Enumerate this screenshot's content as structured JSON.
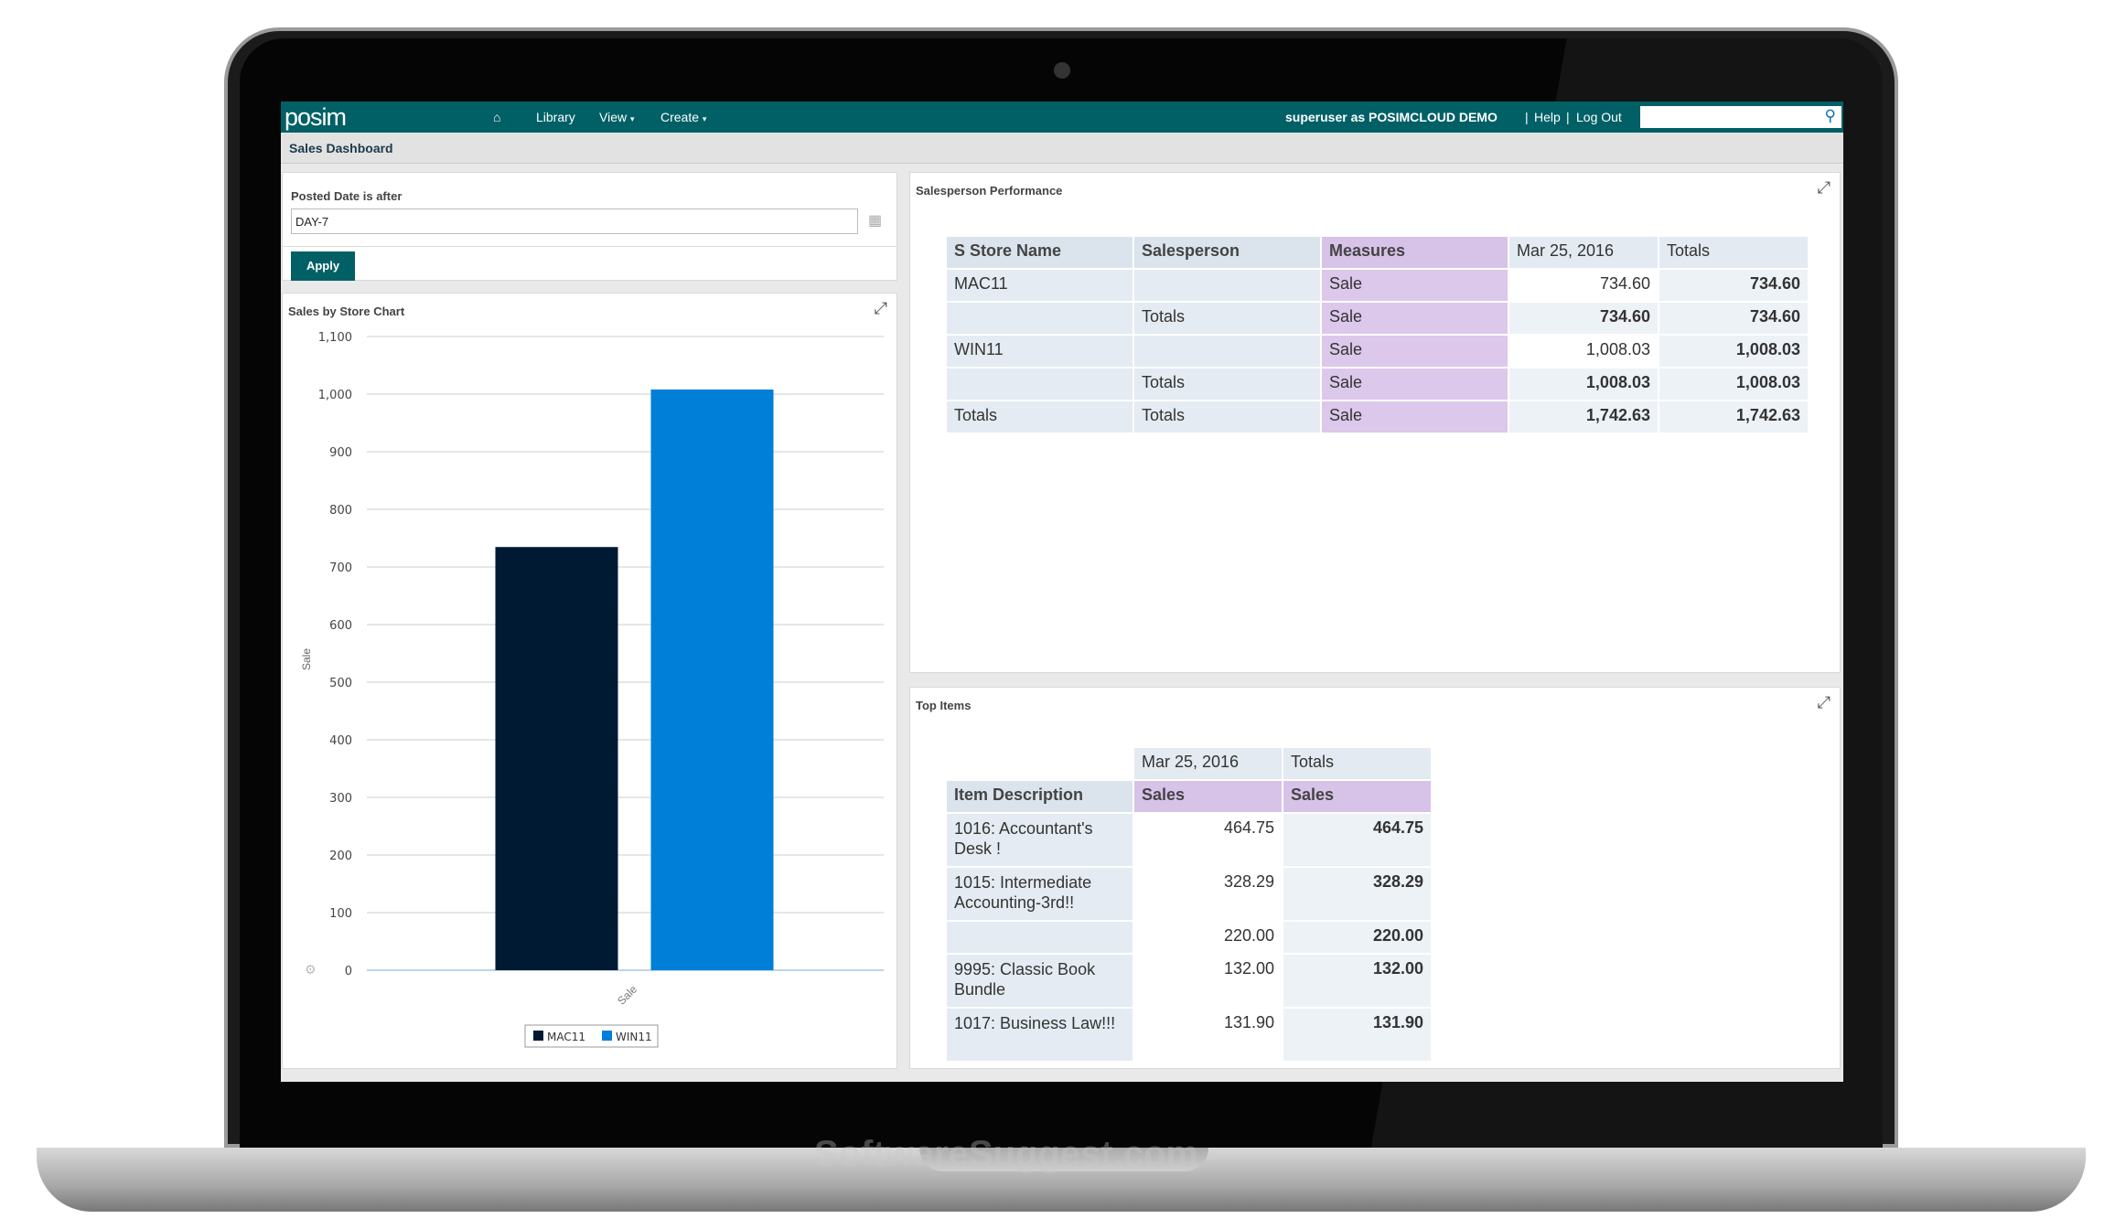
{
  "nav": {
    "logo": "posim",
    "home_icon": "home-icon",
    "library": "Library",
    "view": "View",
    "create": "Create",
    "user": "superuser as POSIMCLOUD DEMO",
    "sep": "|",
    "help": "Help",
    "logout": "Log Out",
    "search_placeholder": "",
    "search_icon": "search-icon",
    "color": "#006066"
  },
  "breadcrumb": "Sales Dashboard",
  "filter": {
    "label": "Posted Date is after",
    "value": "DAY-7",
    "apply": "Apply"
  },
  "chart_panel": {
    "title": "Sales by Store Chart"
  },
  "chart_data": {
    "type": "bar",
    "categories": [
      "Sale"
    ],
    "series": [
      {
        "name": "MAC11",
        "values": [
          734.6
        ],
        "color": "#001a33"
      },
      {
        "name": "WIN11",
        "values": [
          1008.03
        ],
        "color": "#007fd9"
      }
    ],
    "ylabel": "Sale",
    "xlabel": "",
    "ylim": [
      0,
      1100
    ],
    "yticks": [
      "0",
      "100",
      "200",
      "300",
      "400",
      "500",
      "600",
      "700",
      "800",
      "900",
      "1,000",
      "1,100"
    ],
    "grid": true,
    "legend": "bottom"
  },
  "salesperson": {
    "title": "Salesperson Performance",
    "headers": [
      "S Store Name",
      "Salesperson",
      "Measures",
      "Mar 25, 2016",
      "Totals"
    ],
    "rows": [
      [
        "MAC11",
        "",
        "Sale",
        "734.60",
        "734.60"
      ],
      [
        "",
        "Totals",
        "Sale",
        "734.60",
        "734.60"
      ],
      [
        "WIN11",
        "",
        "Sale",
        "1,008.03",
        "1,008.03"
      ],
      [
        "",
        "Totals",
        "Sale",
        "1,008.03",
        "1,008.03"
      ],
      [
        "Totals",
        "Totals",
        "Sale",
        "1,742.63",
        "1,742.63"
      ]
    ]
  },
  "top_items": {
    "title": "Top Items",
    "col_headers": [
      "Mar 25, 2016",
      "Totals"
    ],
    "headers": [
      "Item Description",
      "Sales",
      "Sales"
    ],
    "rows": [
      [
        "1016: Accountant's Desk !",
        "464.75",
        "464.75"
      ],
      [
        "1015: Intermediate Accounting-3rd!!",
        "328.29",
        "328.29"
      ],
      [
        "",
        "220.00",
        "220.00"
      ],
      [
        "9995: Classic Book Bundle",
        "132.00",
        "132.00"
      ],
      [
        "1017: Business Law!!!",
        "131.90",
        "131.90"
      ]
    ]
  },
  "watermark": "SoftwareSuggest.com"
}
